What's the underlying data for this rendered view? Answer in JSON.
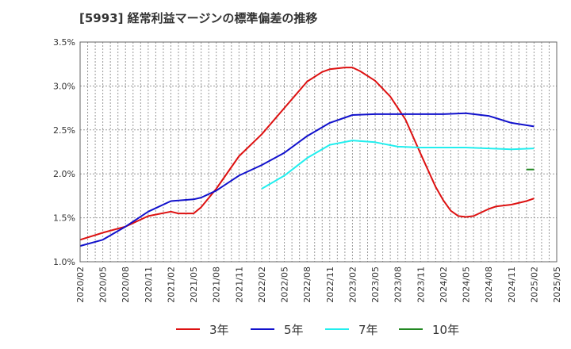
{
  "title": "[5993]  経常利益マージンの標準偏差の推移",
  "chart_data": {
    "type": "line",
    "title": "[5993]  経常利益マージンの標準偏差の推移",
    "xlabel": "",
    "ylabel": "",
    "ylim": [
      1.0,
      3.5
    ],
    "y_ticks": [
      "1.0%",
      "1.5%",
      "2.0%",
      "2.5%",
      "3.0%",
      "3.5%"
    ],
    "x_ticks": [
      "2020/02",
      "2020/05",
      "2020/08",
      "2020/11",
      "2021/02",
      "2021/05",
      "2021/08",
      "2021/11",
      "2022/02",
      "2022/05",
      "2022/08",
      "2022/11",
      "2023/02",
      "2023/05",
      "2023/08",
      "2023/11",
      "2024/02",
      "2024/05",
      "2024/08",
      "2024/11",
      "2025/02",
      "2025/05"
    ],
    "grid": true,
    "legend_position": "bottom",
    "series": [
      {
        "name": "3年",
        "color": "#dd1111",
        "x": [
          "2020/02",
          "2020/05",
          "2020/08",
          "2020/11",
          "2021/02",
          "2021/03",
          "2021/05",
          "2021/06",
          "2021/08",
          "2021/11",
          "2022/02",
          "2022/05",
          "2022/08",
          "2022/10",
          "2022/11",
          "2023/01",
          "2023/02",
          "2023/03",
          "2023/05",
          "2023/07",
          "2023/09",
          "2023/11",
          "2024/01",
          "2024/02",
          "2024/03",
          "2024/04",
          "2024/05",
          "2024/06",
          "2024/08",
          "2024/09",
          "2024/11",
          "2025/01",
          "2025/02"
        ],
        "values": [
          1.25,
          1.33,
          1.4,
          1.52,
          1.57,
          1.55,
          1.55,
          1.62,
          1.83,
          2.2,
          2.45,
          2.75,
          3.05,
          3.16,
          3.19,
          3.21,
          3.21,
          3.17,
          3.06,
          2.88,
          2.62,
          2.23,
          1.85,
          1.7,
          1.58,
          1.52,
          1.51,
          1.52,
          1.6,
          1.63,
          1.65,
          1.69,
          1.72
        ]
      },
      {
        "name": "5年",
        "color": "#1111cc",
        "x": [
          "2020/02",
          "2020/05",
          "2020/08",
          "2020/11",
          "2021/02",
          "2021/05",
          "2021/06",
          "2021/08",
          "2021/11",
          "2022/02",
          "2022/05",
          "2022/08",
          "2022/11",
          "2023/02",
          "2023/05",
          "2023/08",
          "2023/11",
          "2024/02",
          "2024/05",
          "2024/08",
          "2024/11",
          "2025/02"
        ],
        "values": [
          1.18,
          1.25,
          1.4,
          1.57,
          1.69,
          1.71,
          1.73,
          1.81,
          1.98,
          2.1,
          2.24,
          2.43,
          2.58,
          2.67,
          2.68,
          2.68,
          2.68,
          2.68,
          2.69,
          2.66,
          2.58,
          2.54
        ]
      },
      {
        "name": "7年",
        "color": "#22eeee",
        "x": [
          "2022/02",
          "2022/05",
          "2022/08",
          "2022/11",
          "2023/02",
          "2023/05",
          "2023/08",
          "2023/11",
          "2024/02",
          "2024/05",
          "2024/08",
          "2024/11",
          "2025/02"
        ],
        "values": [
          1.83,
          1.98,
          2.18,
          2.33,
          2.38,
          2.36,
          2.31,
          2.3,
          2.3,
          2.3,
          2.29,
          2.28,
          2.29
        ]
      },
      {
        "name": "10年",
        "color": "#228822",
        "x": [
          "2025/01",
          "2025/02"
        ],
        "values": [
          2.05,
          2.05
        ]
      }
    ]
  }
}
